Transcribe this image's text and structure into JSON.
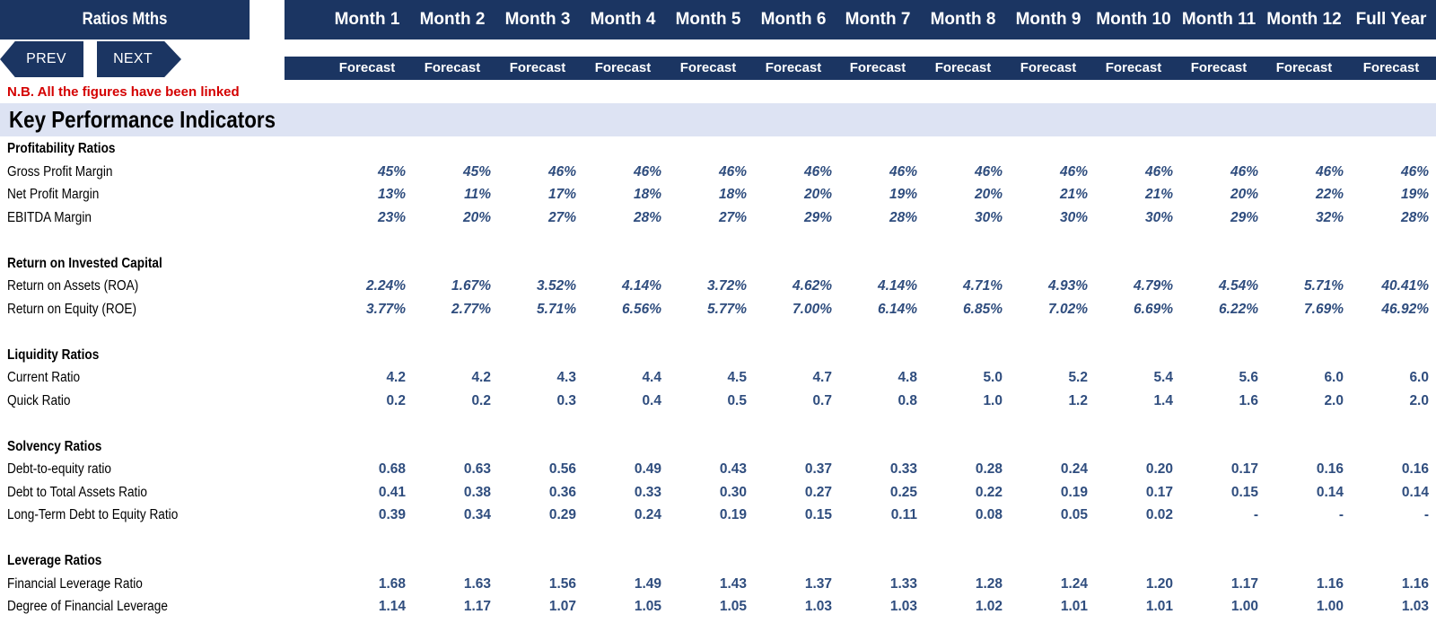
{
  "sheet": {
    "title": "Ratios Mths",
    "months": [
      "Month 1",
      "Month 2",
      "Month 3",
      "Month 4",
      "Month 5",
      "Month 6",
      "Month 7",
      "Month 8",
      "Month 9",
      "Month 10",
      "Month 11",
      "Month 12",
      "Full Year"
    ],
    "forecast_label": "Forecast",
    "colors": {
      "header_bg": "#1b3562",
      "kpi_bg": "#dde3f3",
      "value_text": "#2f4d7e",
      "note_text": "#d40000"
    }
  },
  "nav": {
    "prev_label": "PREV",
    "next_label": "NEXT"
  },
  "note": "N.B. All the figures have been linked",
  "kpi_title": "Key Performance Indicators",
  "sections": [
    {
      "heading": "Profitability Ratios",
      "italic": true,
      "rows": [
        {
          "label": "Gross Profit Margin",
          "values": [
            "45%",
            "45%",
            "46%",
            "46%",
            "46%",
            "46%",
            "46%",
            "46%",
            "46%",
            "46%",
            "46%",
            "46%",
            "46%"
          ]
        },
        {
          "label": "Net Profit Margin",
          "values": [
            "13%",
            "11%",
            "17%",
            "18%",
            "18%",
            "20%",
            "19%",
            "20%",
            "21%",
            "21%",
            "20%",
            "22%",
            "19%"
          ]
        },
        {
          "label": "EBITDA Margin",
          "values": [
            "23%",
            "20%",
            "27%",
            "28%",
            "27%",
            "29%",
            "28%",
            "30%",
            "30%",
            "30%",
            "29%",
            "32%",
            "28%"
          ]
        }
      ]
    },
    {
      "heading": "Return on Invested Capital",
      "italic": true,
      "rows": [
        {
          "label": "Return on Assets (ROA)",
          "values": [
            "2.24%",
            "1.67%",
            "3.52%",
            "4.14%",
            "3.72%",
            "4.62%",
            "4.14%",
            "4.71%",
            "4.93%",
            "4.79%",
            "4.54%",
            "5.71%",
            "40.41%"
          ]
        },
        {
          "label": "Return on Equity (ROE)",
          "values": [
            "3.77%",
            "2.77%",
            "5.71%",
            "6.56%",
            "5.77%",
            "7.00%",
            "6.14%",
            "6.85%",
            "7.02%",
            "6.69%",
            "6.22%",
            "7.69%",
            "46.92%"
          ]
        }
      ]
    },
    {
      "heading": "Liquidity Ratios",
      "italic": false,
      "rows": [
        {
          "label": "Current Ratio",
          "values": [
            "4.2",
            "4.2",
            "4.3",
            "4.4",
            "4.5",
            "4.7",
            "4.8",
            "5.0",
            "5.2",
            "5.4",
            "5.6",
            "6.0",
            "6.0"
          ]
        },
        {
          "label": "Quick Ratio",
          "values": [
            "0.2",
            "0.2",
            "0.3",
            "0.4",
            "0.5",
            "0.7",
            "0.8",
            "1.0",
            "1.2",
            "1.4",
            "1.6",
            "2.0",
            "2.0"
          ]
        }
      ]
    },
    {
      "heading": "Solvency Ratios",
      "italic": false,
      "rows": [
        {
          "label": "Debt-to-equity ratio",
          "values": [
            "0.68",
            "0.63",
            "0.56",
            "0.49",
            "0.43",
            "0.37",
            "0.33",
            "0.28",
            "0.24",
            "0.20",
            "0.17",
            "0.16",
            "0.16"
          ]
        },
        {
          "label": "Debt to Total Assets Ratio",
          "values": [
            "0.41",
            "0.38",
            "0.36",
            "0.33",
            "0.30",
            "0.27",
            "0.25",
            "0.22",
            "0.19",
            "0.17",
            "0.15",
            "0.14",
            "0.14"
          ]
        },
        {
          "label": "Long-Term Debt to Equity Ratio",
          "values": [
            "0.39",
            "0.34",
            "0.29",
            "0.24",
            "0.19",
            "0.15",
            "0.11",
            "0.08",
            "0.05",
            "0.02",
            "-",
            "-",
            "-"
          ]
        }
      ]
    },
    {
      "heading": "Leverage Ratios",
      "italic": false,
      "rows": [
        {
          "label": "Financial Leverage Ratio",
          "values": [
            "1.68",
            "1.63",
            "1.56",
            "1.49",
            "1.43",
            "1.37",
            "1.33",
            "1.28",
            "1.24",
            "1.20",
            "1.17",
            "1.16",
            "1.16"
          ]
        },
        {
          "label": "Degree of Financial Leverage",
          "values": [
            "1.14",
            "1.17",
            "1.07",
            "1.05",
            "1.05",
            "1.03",
            "1.03",
            "1.02",
            "1.01",
            "1.01",
            "1.00",
            "1.00",
            "1.03"
          ]
        }
      ]
    }
  ]
}
